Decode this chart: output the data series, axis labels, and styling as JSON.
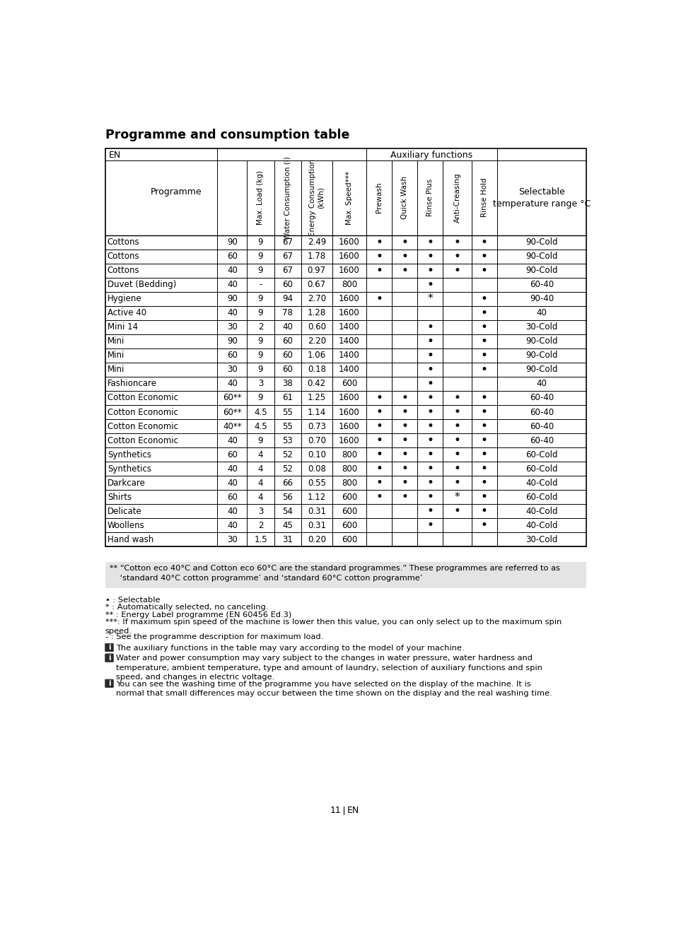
{
  "title": "Programme and consumption table",
  "col_header_row1": "EN",
  "col_header_aux": "Auxiliary functions",
  "rotated_headers": [
    "Max. Load (kg)",
    "Water Consumption (l)",
    "Energy Consumption\n(kWh)",
    "Max. Speed***",
    "Prewash",
    "Quick Wash",
    "Rinse Plus",
    "Anti-Creasing",
    "Rinse Hold"
  ],
  "selectable_header": "Selectable\ntemperature range °C",
  "programme_header": "Programme",
  "rows": [
    [
      "Cottons",
      "90",
      "9",
      "67",
      "2.49",
      "1600",
      "•",
      "•",
      "•",
      "•",
      "•",
      "90-Cold"
    ],
    [
      "Cottons",
      "60",
      "9",
      "67",
      "1.78",
      "1600",
      "•",
      "•",
      "•",
      "•",
      "•",
      "90-Cold"
    ],
    [
      "Cottons",
      "40",
      "9",
      "67",
      "0.97",
      "1600",
      "•",
      "•",
      "•",
      "•",
      "•",
      "90-Cold"
    ],
    [
      "Duvet (Bedding)",
      "40",
      "-",
      "60",
      "0.67",
      "800",
      "",
      "",
      "•",
      "",
      "",
      "60-40"
    ],
    [
      "Hygiene",
      "90",
      "9",
      "94",
      "2.70",
      "1600",
      "•",
      "",
      "*",
      "",
      "•",
      "90-40"
    ],
    [
      "Active 40",
      "40",
      "9",
      "78",
      "1.28",
      "1600",
      "",
      "",
      "",
      "",
      "•",
      "40"
    ],
    [
      "Mini 14",
      "30",
      "2",
      "40",
      "0.60",
      "1400",
      "",
      "",
      "•",
      "",
      "•",
      "30-Cold"
    ],
    [
      "Mini",
      "90",
      "9",
      "60",
      "2.20",
      "1400",
      "",
      "",
      "•",
      "",
      "•",
      "90-Cold"
    ],
    [
      "Mini",
      "60",
      "9",
      "60",
      "1.06",
      "1400",
      "",
      "",
      "•",
      "",
      "•",
      "90-Cold"
    ],
    [
      "Mini",
      "30",
      "9",
      "60",
      "0.18",
      "1400",
      "",
      "",
      "•",
      "",
      "•",
      "90-Cold"
    ],
    [
      "Fashioncare",
      "40",
      "3",
      "38",
      "0.42",
      "600",
      "",
      "",
      "•",
      "",
      "",
      "40"
    ],
    [
      "Cotton Economic",
      "60**",
      "9",
      "61",
      "1.25",
      "1600",
      "•",
      "•",
      "•",
      "•",
      "•",
      "60-40"
    ],
    [
      "Cotton Economic",
      "60**",
      "4.5",
      "55",
      "1.14",
      "1600",
      "•",
      "•",
      "•",
      "•",
      "•",
      "60-40"
    ],
    [
      "Cotton Economic",
      "40**",
      "4.5",
      "55",
      "0.73",
      "1600",
      "•",
      "•",
      "•",
      "•",
      "•",
      "60-40"
    ],
    [
      "Cotton Economic",
      "40",
      "9",
      "53",
      "0.70",
      "1600",
      "•",
      "•",
      "•",
      "•",
      "•",
      "60-40"
    ],
    [
      "Synthetics",
      "60",
      "4",
      "52",
      "0.10",
      "800",
      "•",
      "•",
      "•",
      "•",
      "•",
      "60-Cold"
    ],
    [
      "Synthetics",
      "40",
      "4",
      "52",
      "0.08",
      "800",
      "•",
      "•",
      "•",
      "•",
      "•",
      "60-Cold"
    ],
    [
      "Darkcare",
      "40",
      "4",
      "66",
      "0.55",
      "800",
      "•",
      "•",
      "•",
      "•",
      "•",
      "40-Cold"
    ],
    [
      "Shirts",
      "60",
      "4",
      "56",
      "1.12",
      "600",
      "•",
      "•",
      "•",
      "*",
      "•",
      "60-Cold"
    ],
    [
      "Delicate",
      "40",
      "3",
      "54",
      "0.31",
      "600",
      "",
      "",
      "•",
      "•",
      "•",
      "40-Cold"
    ],
    [
      "Woollens",
      "40",
      "2",
      "45",
      "0.31",
      "600",
      "",
      "",
      "•",
      "",
      "•",
      "40-Cold"
    ],
    [
      "Hand wash",
      "30",
      "1.5",
      "31",
      "0.20",
      "600",
      "",
      "",
      "",
      "",
      "",
      "30-Cold"
    ]
  ],
  "footnote_box": "** “Cotton eco 40°C and Cotton eco 60°C are the standard programmes.” These programmes are referred to as\n    ‘standard 40°C cotton programme’ and ‘standard 60°C cotton programme’",
  "footnotes": [
    "• : Selectable",
    "* : Automatically selected, no canceling.",
    "** : Energy Label programme (EN 60456 Ed.3)",
    "***: If maximum spin speed of the machine is lower then this value, you can only select up to the maximum spin\nspeed.",
    "- : See the programme description for maximum load."
  ],
  "info_notes": [
    "The auxiliary functions in the table may vary according to the model of your machine.",
    "Water and power consumption may vary subject to the changes in water pressure, water hardness and\ntemperature, ambient temperature, type and amount of laundry, selection of auxiliary functions and spin\nspeed, and changes in electric voltage.",
    "You can see the washing time of the programme you have selected on the display of the machine. It is\nnormal that small differences may occur between the time shown on the display and the real washing time."
  ],
  "page_num": "11",
  "page_en": "EN",
  "bg_color": "#ffffff",
  "footnote_bg": "#e4e4e4",
  "border_color": "#000000",
  "text_color": "#000000"
}
